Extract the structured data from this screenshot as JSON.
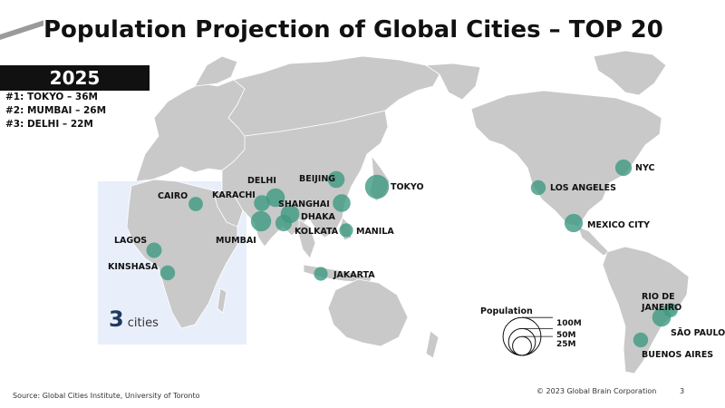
{
  "title": "Population Projection of Global Cities – TOP 20",
  "year": "2025",
  "top3": [
    {
      "rank": "#1:",
      "city": "TOKYO",
      "pop": "36M"
    },
    {
      "rank": "#2:",
      "city": "MUMBAI",
      "pop": "26M"
    },
    {
      "rank": "#3:",
      "city": "DELHI",
      "pop": "22M"
    }
  ],
  "africa_callout": {
    "count": "3",
    "unit": "cities"
  },
  "cities": [
    {
      "name": "TOKYO",
      "pop_m": 36
    },
    {
      "name": "MUMBAI",
      "pop_m": 26
    },
    {
      "name": "DELHI",
      "pop_m": 22
    },
    {
      "name": "DHAKA",
      "pop_m": 22
    },
    {
      "name": "SHANGHAI",
      "pop_m": 20
    },
    {
      "name": "BEIJING",
      "pop_m": 18
    },
    {
      "name": "KOLKATA",
      "pop_m": 17
    },
    {
      "name": "KARACHI",
      "pop_m": 16
    },
    {
      "name": "CAIRO",
      "pop_m": 13
    },
    {
      "name": "LAGOS",
      "pop_m": 15
    },
    {
      "name": "KINSHASA",
      "pop_m": 14
    },
    {
      "name": "MANILA",
      "pop_m": 12
    },
    {
      "name": "JAKARTA",
      "pop_m": 12
    },
    {
      "name": "NYC",
      "pop_m": 17
    },
    {
      "name": "LOS ANGELES",
      "pop_m": 14
    },
    {
      "name": "MEXICO CITY",
      "pop_m": 21
    },
    {
      "name": "RIO DE JANEIRO",
      "pop_m": 13
    },
    {
      "name": "SÃO PAULO",
      "pop_m": 22
    },
    {
      "name": "BUENOS AIRES",
      "pop_m": 14
    }
  ],
  "legend": {
    "title": "Population",
    "entries": [
      {
        "label": "100M",
        "value": 100
      },
      {
        "label": "50M",
        "value": 50
      },
      {
        "label": "25M",
        "value": 25
      }
    ]
  },
  "source": "Source: Global Cities Institute, University of Toronto",
  "copyright": "© 2023 Global Brain Corporation",
  "page_number": "3",
  "colors": {
    "land": "#c9c9c9",
    "bubble": "#3e9a82",
    "title_bar": "#111111",
    "highlight_box": "#e0eaf8"
  }
}
